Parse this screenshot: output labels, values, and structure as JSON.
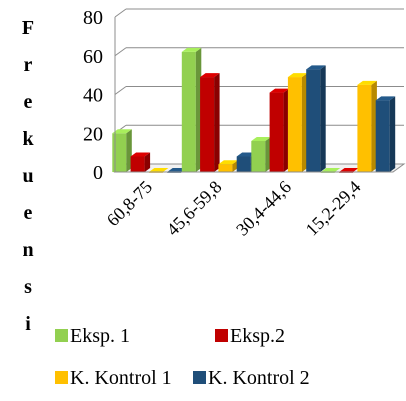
{
  "chart_data": {
    "type": "bar",
    "title": "",
    "xlabel": "",
    "ylabel": "Frekuensi",
    "ylim": [
      0,
      80
    ],
    "yticks": [
      0,
      20,
      40,
      60,
      80
    ],
    "grid": true,
    "legend_position": "bottom",
    "categories": [
      "60,8-75",
      "45,6-59,8",
      "30,4-44,6",
      "15,2-29,4"
    ],
    "series": [
      {
        "name": "Eksp. 1",
        "color": "#92d050",
        "values": [
          20,
          62,
          16,
          0
        ]
      },
      {
        "name": "Eksp.2",
        "color": "#c00000",
        "values": [
          8,
          49,
          41,
          0
        ]
      },
      {
        "name": "K. Kontrol 1",
        "color": "#ffc000",
        "values": [
          0,
          4,
          49,
          45
        ]
      },
      {
        "name": "K. Kontrol 2",
        "color": "#1f4e79",
        "values": [
          0,
          8,
          53,
          37
        ]
      }
    ]
  }
}
